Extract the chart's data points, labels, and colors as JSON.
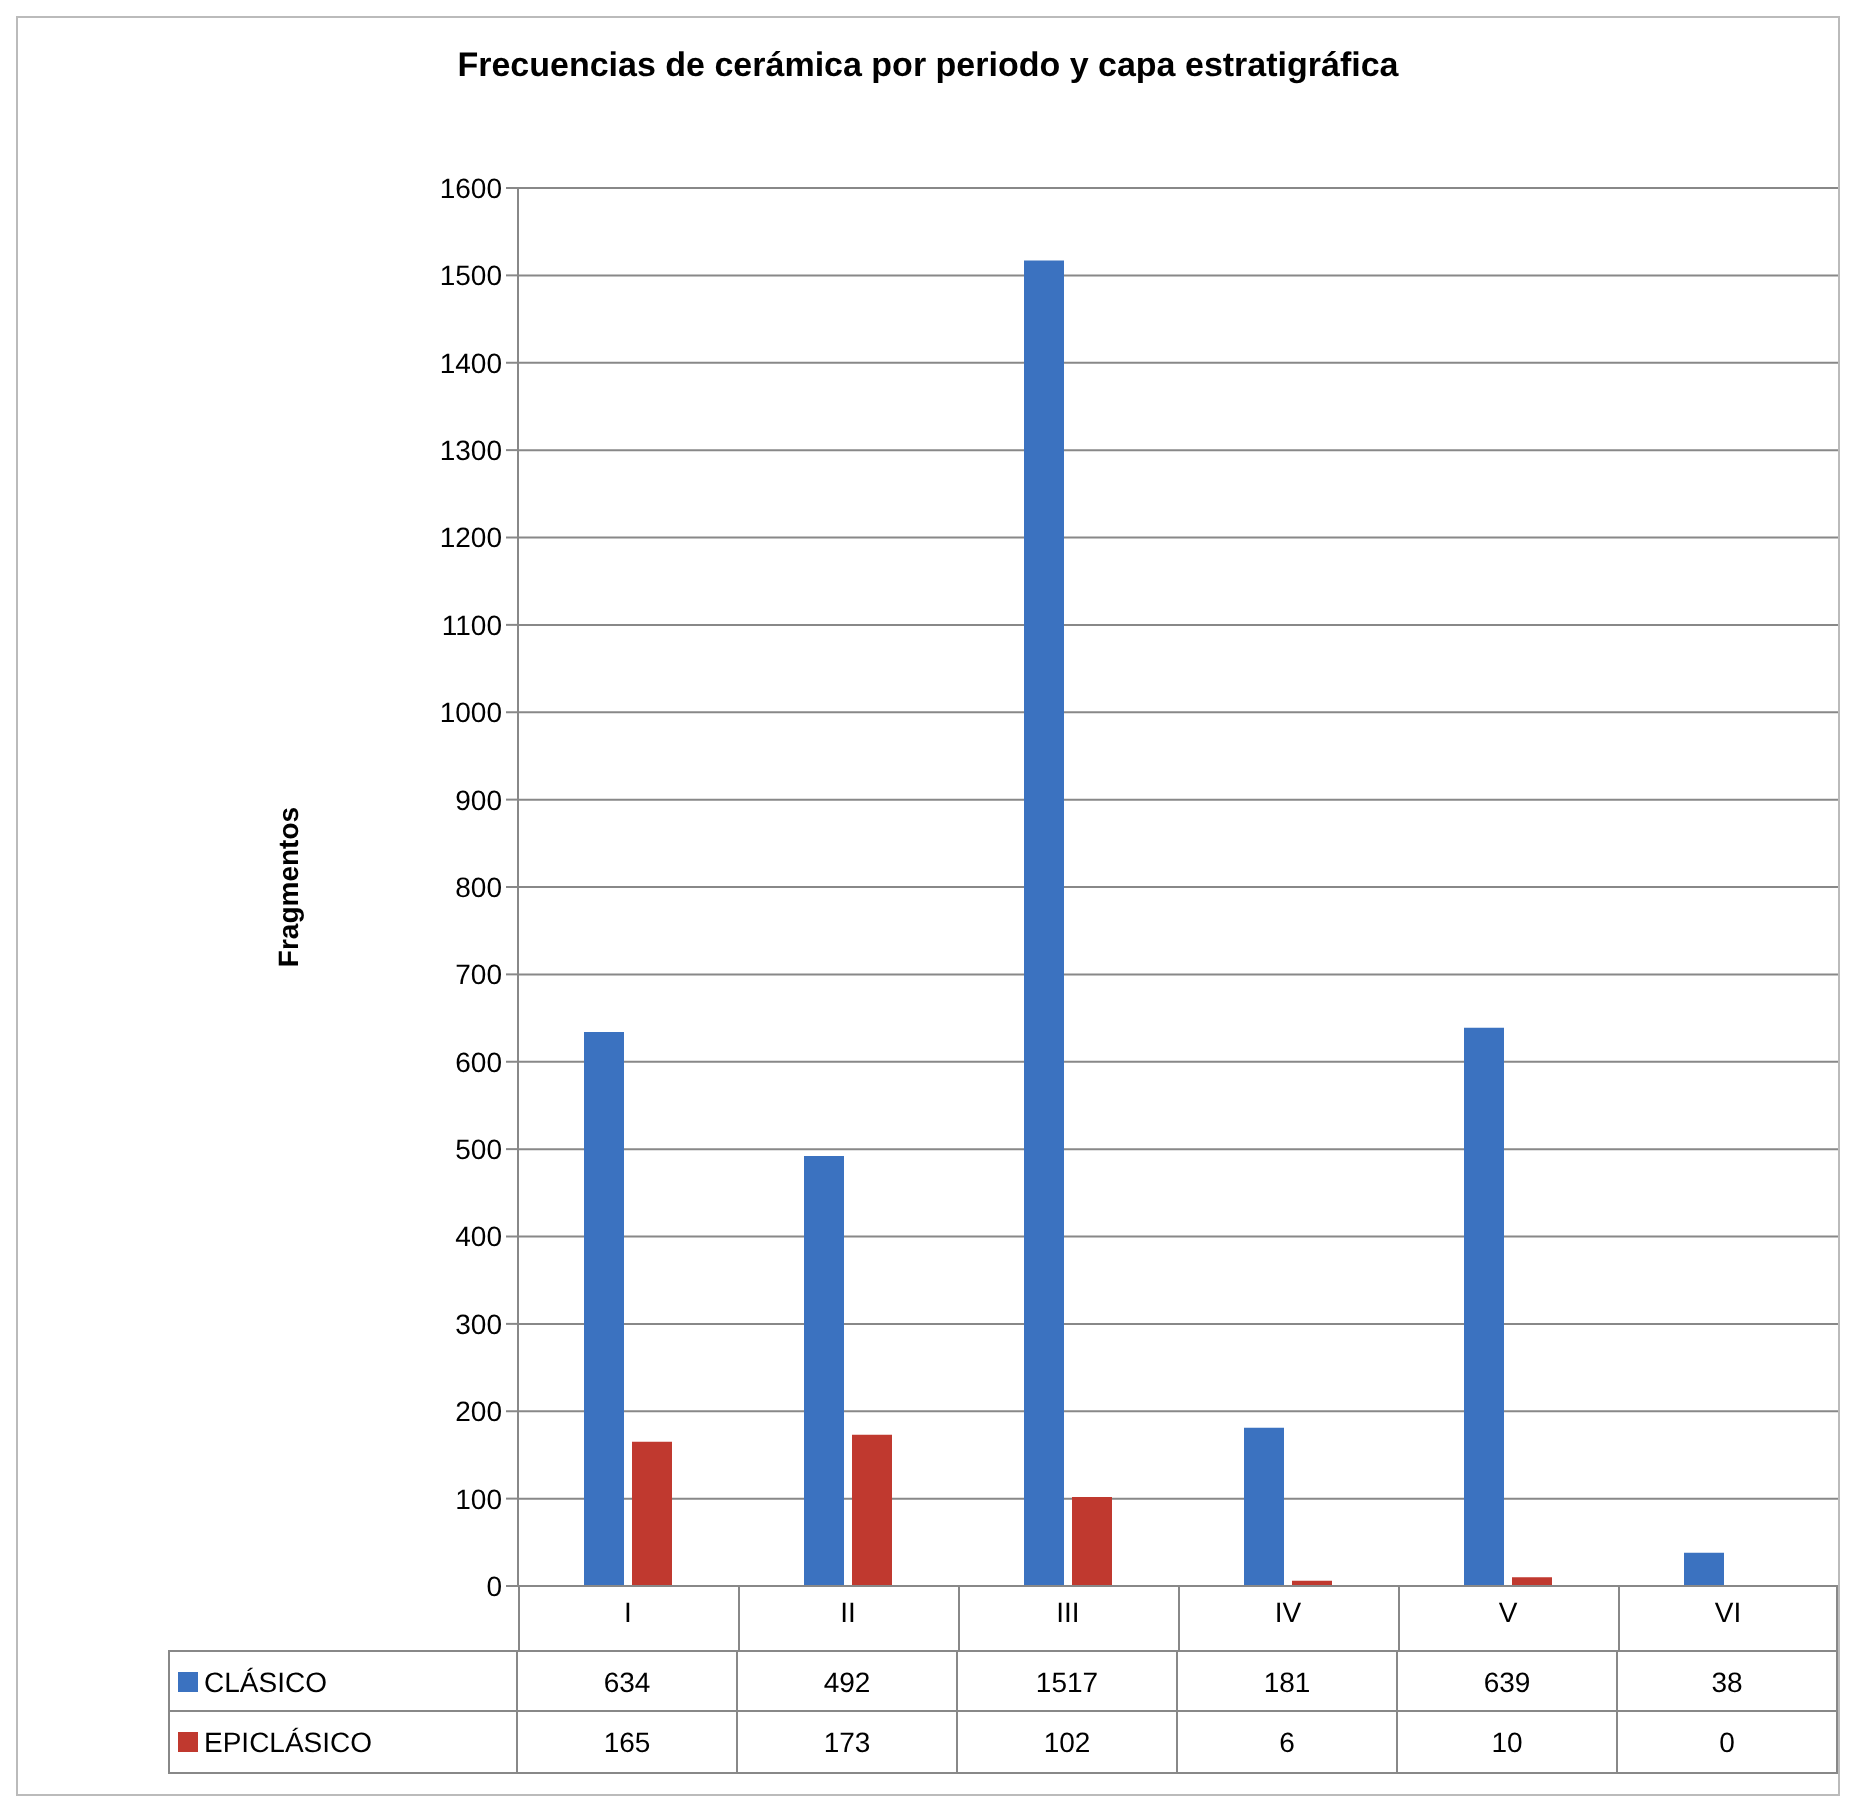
{
  "chart_data": {
    "type": "bar",
    "title": "Frecuencias de cerámica por periodo y capa estratigráfica",
    "ylabel": "Fragmentos",
    "categories": [
      "I",
      "II",
      "III",
      "IV",
      "V",
      "VI"
    ],
    "series": [
      {
        "name": "CLÁSICO",
        "color": "#3b72c0",
        "values": [
          634,
          492,
          1517,
          181,
          639,
          38
        ]
      },
      {
        "name": "EPICLÁSICO",
        "color": "#c0392f",
        "values": [
          165,
          173,
          102,
          6,
          10,
          0
        ]
      }
    ],
    "ylim": [
      0,
      1600
    ],
    "yticks": [
      0,
      100,
      200,
      300,
      400,
      500,
      600,
      700,
      800,
      900,
      1000,
      1100,
      1200,
      1300,
      1400,
      1500,
      1600
    ],
    "grid": "y",
    "legend": "bottom",
    "data_labels": true
  }
}
